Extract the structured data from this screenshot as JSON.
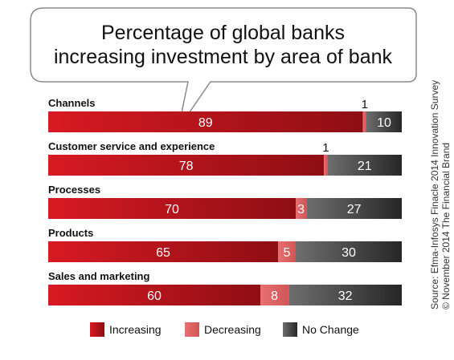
{
  "title": {
    "line1": "Percentage of global banks",
    "line2": "increasing investment by area of bank"
  },
  "chart_data": {
    "type": "bar",
    "orientation": "horizontal",
    "stacked": true,
    "categories": [
      "Channels",
      "Customer service and experience",
      "Processes",
      "Products",
      "Sales and marketing"
    ],
    "series": [
      {
        "name": "Increasing",
        "values": [
          89,
          78,
          70,
          65,
          60
        ],
        "color": "#c0141c"
      },
      {
        "name": "Decreasing",
        "values": [
          1,
          1,
          3,
          5,
          8
        ],
        "color": "#e06060"
      },
      {
        "name": "No Change",
        "values": [
          10,
          21,
          27,
          30,
          32
        ],
        "color": "#4a4a4a"
      }
    ],
    "xlim": [
      0,
      100
    ],
    "legend": "bottom"
  },
  "source": {
    "line1": "Source: Efma-Infosys Finacle 2014 Innovation Survey",
    "line2": "© November 2014 The Financial Brand"
  },
  "colors": {
    "increasing": "#c0141c",
    "decreasing": "#e06060",
    "no_change": "#4a4a4a"
  }
}
